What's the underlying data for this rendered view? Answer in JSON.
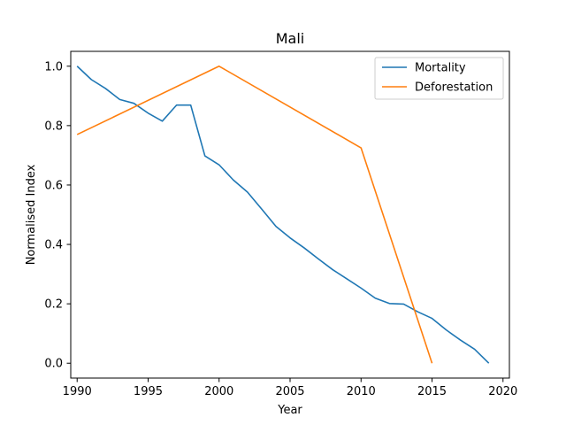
{
  "chart_data": {
    "type": "line",
    "title": "Mali",
    "xlabel": "Year",
    "ylabel": "Normalised Index",
    "xlim": [
      1989.55,
      2020.45
    ],
    "ylim": [
      -0.05,
      1.05
    ],
    "xticks": [
      1990,
      1995,
      2000,
      2005,
      2010,
      2015,
      2020
    ],
    "yticks": [
      0.0,
      0.2,
      0.4,
      0.6,
      0.8,
      1.0
    ],
    "xtick_labels": [
      "1990",
      "1995",
      "2000",
      "2005",
      "2010",
      "2015",
      "2020"
    ],
    "ytick_labels": [
      "0.0",
      "0.2",
      "0.4",
      "0.6",
      "0.8",
      "1.0"
    ],
    "grid": false,
    "legend_position": "top-right",
    "series": [
      {
        "name": "Mortality",
        "color": "#1f77b4",
        "x": [
          1990,
          1991,
          1992,
          1993,
          1994,
          1995,
          1996,
          1997,
          1998,
          1999,
          2000,
          2001,
          2002,
          2003,
          2004,
          2005,
          2006,
          2007,
          2008,
          2009,
          2010,
          2011,
          2012,
          2013,
          2014,
          2015,
          2016,
          2017,
          2018,
          2019
        ],
        "y": [
          1.0,
          0.955,
          0.925,
          0.888,
          0.875,
          0.842,
          0.815,
          0.869,
          0.869,
          0.698,
          0.668,
          0.617,
          0.576,
          0.519,
          0.461,
          0.422,
          0.388,
          0.351,
          0.315,
          0.284,
          0.253,
          0.219,
          0.201,
          0.199,
          0.173,
          0.151,
          0.112,
          0.078,
          0.047,
          0.0
        ]
      },
      {
        "name": "Deforestation",
        "color": "#ff7f0e",
        "x": [
          1990,
          2000,
          2010,
          2015
        ],
        "y": [
          0.77,
          1.0,
          0.725,
          0.0
        ]
      }
    ]
  }
}
